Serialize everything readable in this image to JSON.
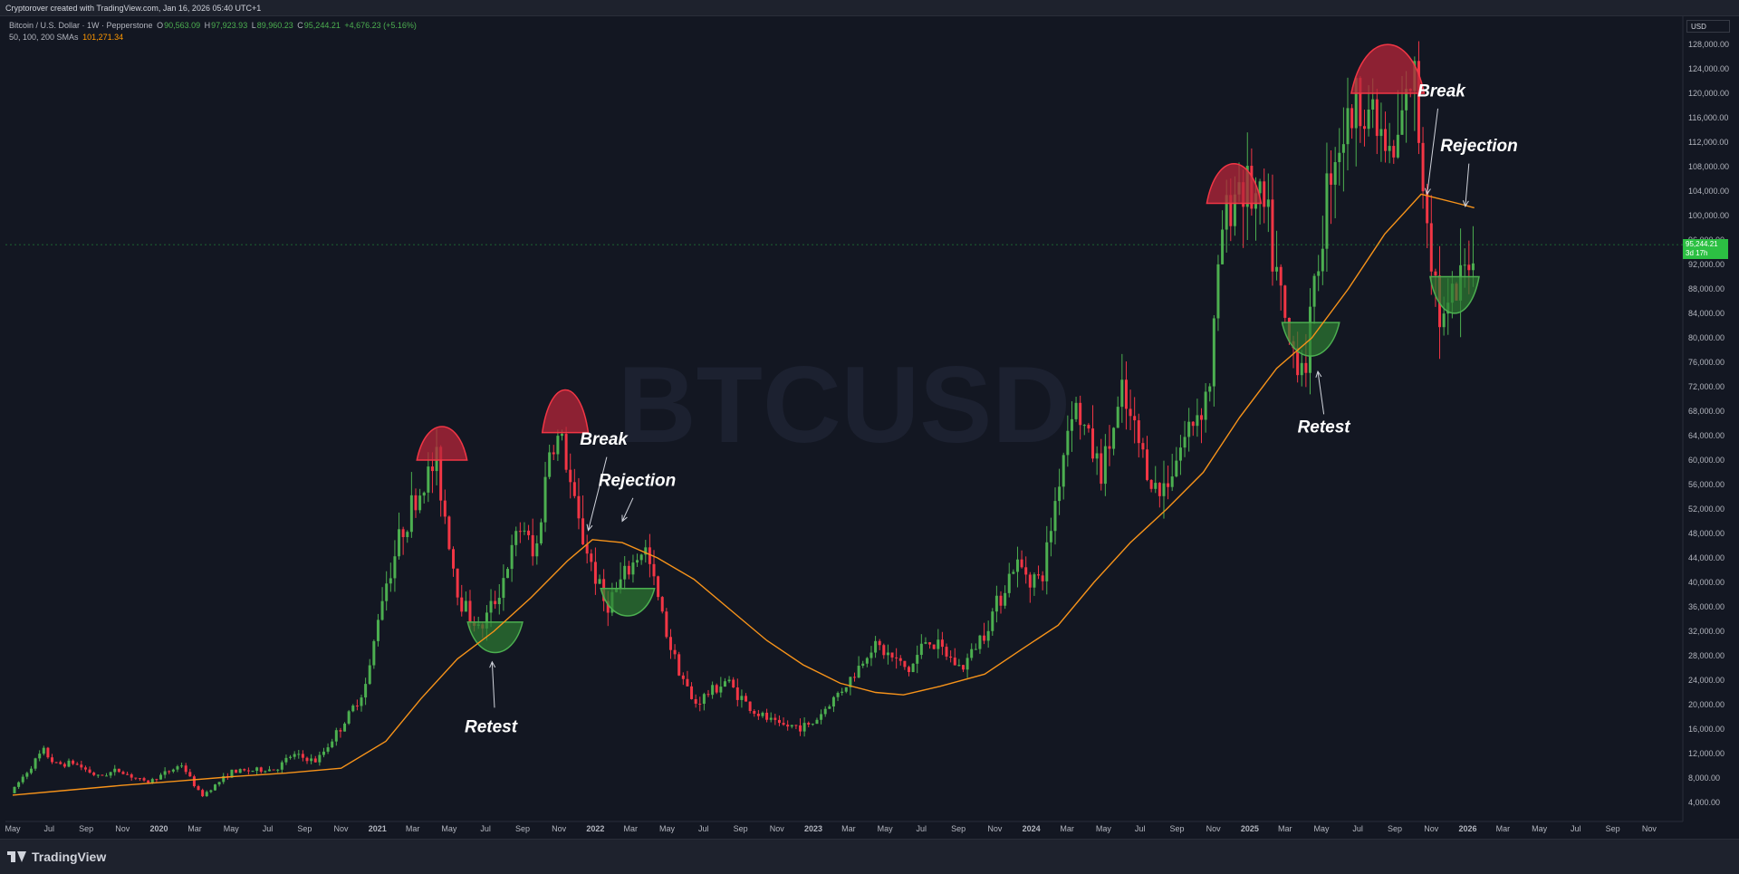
{
  "header": {
    "attribution": "Cryptorover created with TradingView.com, Jan 16, 2026 05:40 UTC+1"
  },
  "legend": {
    "symbol": "Bitcoin / U.S. Dollar · 1W · Pepperstone",
    "open_label": "O",
    "open": "90,563.09",
    "high_label": "H",
    "high": "97,923.93",
    "low_label": "L",
    "low": "89,960.23",
    "close_label": "C",
    "close": "95,244.21",
    "change": "+4,676.23 (+5.16%)",
    "sma_label": "50, 100, 200 SMAs",
    "sma_value": "101,271.34"
  },
  "price_axis": {
    "currency": "USD",
    "current_price": "95,244.21",
    "countdown": "3d 17h"
  },
  "footer": {
    "brand": "TradingView"
  },
  "colors": {
    "background": "#131722",
    "up": "#4caf50",
    "down": "#f23645",
    "sma": "#f7931a",
    "top_fill": "#b7263a",
    "bottom_fill": "#2e7d32"
  },
  "chart_data": {
    "type": "candlestick",
    "title": "",
    "xlabel": "",
    "ylabel": "",
    "ylim": [
      0,
      132000
    ],
    "x_range": [
      "2019-05-01",
      "2026-11-30"
    ],
    "y_ticks": [
      4000,
      8000,
      12000,
      16000,
      20000,
      24000,
      28000,
      32000,
      36000,
      40000,
      44000,
      48000,
      52000,
      56000,
      60000,
      64000,
      68000,
      72000,
      76000,
      80000,
      84000,
      88000,
      92000,
      96000,
      100000,
      104000,
      108000,
      112000,
      116000,
      120000,
      124000,
      128000
    ],
    "y_tick_labels": [
      "4,000.00",
      "8,000.00",
      "12,000.00",
      "16,000.00",
      "20,000.00",
      "24,000.00",
      "28,000.00",
      "32,000.00",
      "36,000.00",
      "40,000.00",
      "44,000.00",
      "48,000.00",
      "52,000.00",
      "56,000.00",
      "60,000.00",
      "64,000.00",
      "68,000.00",
      "72,000.00",
      "76,000.00",
      "80,000.00",
      "84,000.00",
      "88,000.00",
      "92,000.00",
      "96,000.00",
      "100,000.00",
      "104,000.00",
      "108,000.00",
      "112,000.00",
      "116,000.00",
      "120,000.00",
      "124,000.00",
      "128,000.00"
    ],
    "x_ticks": [
      {
        "date": "2019-05-01",
        "label": "May",
        "bold": false
      },
      {
        "date": "2019-07-01",
        "label": "Jul",
        "bold": false
      },
      {
        "date": "2019-09-01",
        "label": "Sep",
        "bold": false
      },
      {
        "date": "2019-11-01",
        "label": "Nov",
        "bold": false
      },
      {
        "date": "2020-01-01",
        "label": "2020",
        "bold": true
      },
      {
        "date": "2020-03-01",
        "label": "Mar",
        "bold": false
      },
      {
        "date": "2020-05-01",
        "label": "May",
        "bold": false
      },
      {
        "date": "2020-07-01",
        "label": "Jul",
        "bold": false
      },
      {
        "date": "2020-09-01",
        "label": "Sep",
        "bold": false
      },
      {
        "date": "2020-11-01",
        "label": "Nov",
        "bold": false
      },
      {
        "date": "2021-01-01",
        "label": "2021",
        "bold": true
      },
      {
        "date": "2021-03-01",
        "label": "Mar",
        "bold": false
      },
      {
        "date": "2021-05-01",
        "label": "May",
        "bold": false
      },
      {
        "date": "2021-07-01",
        "label": "Jul",
        "bold": false
      },
      {
        "date": "2021-09-01",
        "label": "Sep",
        "bold": false
      },
      {
        "date": "2021-11-01",
        "label": "Nov",
        "bold": false
      },
      {
        "date": "2022-01-01",
        "label": "2022",
        "bold": true
      },
      {
        "date": "2022-03-01",
        "label": "Mar",
        "bold": false
      },
      {
        "date": "2022-05-01",
        "label": "May",
        "bold": false
      },
      {
        "date": "2022-07-01",
        "label": "Jul",
        "bold": false
      },
      {
        "date": "2022-09-01",
        "label": "Sep",
        "bold": false
      },
      {
        "date": "2022-11-01",
        "label": "Nov",
        "bold": false
      },
      {
        "date": "2023-01-01",
        "label": "2023",
        "bold": true
      },
      {
        "date": "2023-03-01",
        "label": "Mar",
        "bold": false
      },
      {
        "date": "2023-05-01",
        "label": "May",
        "bold": false
      },
      {
        "date": "2023-07-01",
        "label": "Jul",
        "bold": false
      },
      {
        "date": "2023-09-01",
        "label": "Sep",
        "bold": false
      },
      {
        "date": "2023-11-01",
        "label": "Nov",
        "bold": false
      },
      {
        "date": "2024-01-01",
        "label": "2024",
        "bold": true
      },
      {
        "date": "2024-03-01",
        "label": "Mar",
        "bold": false
      },
      {
        "date": "2024-05-01",
        "label": "May",
        "bold": false
      },
      {
        "date": "2024-07-01",
        "label": "Jul",
        "bold": false
      },
      {
        "date": "2024-09-01",
        "label": "Sep",
        "bold": false
      },
      {
        "date": "2024-11-01",
        "label": "Nov",
        "bold": false
      },
      {
        "date": "2025-01-01",
        "label": "2025",
        "bold": true
      },
      {
        "date": "2025-03-01",
        "label": "Mar",
        "bold": false
      },
      {
        "date": "2025-05-01",
        "label": "May",
        "bold": false
      },
      {
        "date": "2025-07-01",
        "label": "Jul",
        "bold": false
      },
      {
        "date": "2025-09-01",
        "label": "Sep",
        "bold": false
      },
      {
        "date": "2025-11-01",
        "label": "Nov",
        "bold": false
      },
      {
        "date": "2026-01-01",
        "label": "2026",
        "bold": true
      },
      {
        "date": "2026-03-01",
        "label": "Mar",
        "bold": false
      },
      {
        "date": "2026-05-01",
        "label": "May",
        "bold": false
      },
      {
        "date": "2026-07-01",
        "label": "Jul",
        "bold": false
      },
      {
        "date": "2026-09-01",
        "label": "Sep",
        "bold": false
      },
      {
        "date": "2026-11-01",
        "label": "Nov",
        "bold": false
      }
    ],
    "price_path": [
      [
        "2019-05-01",
        5500
      ],
      [
        "2019-06-25",
        12500
      ],
      [
        "2019-07-15",
        10200
      ],
      [
        "2019-08-15",
        10500
      ],
      [
        "2019-09-25",
        8200
      ],
      [
        "2019-10-28",
        9300
      ],
      [
        "2019-12-15",
        7200
      ],
      [
        "2020-02-12",
        10200
      ],
      [
        "2020-03-16",
        5000
      ],
      [
        "2020-05-05",
        9000
      ],
      [
        "2020-07-20",
        9500
      ],
      [
        "2020-08-15",
        11800
      ],
      [
        "2020-09-25",
        10700
      ],
      [
        "2020-11-20",
        18500
      ],
      [
        "2020-12-20",
        24000
      ],
      [
        "2021-01-10",
        37000
      ],
      [
        "2021-02-20",
        50000
      ],
      [
        "2021-04-13",
        60000
      ],
      [
        "2021-05-20",
        38000
      ],
      [
        "2021-06-25",
        32000
      ],
      [
        "2021-07-25",
        38000
      ],
      [
        "2021-09-05",
        50000
      ],
      [
        "2021-09-25",
        43000
      ],
      [
        "2021-10-20",
        62000
      ],
      [
        "2021-11-08",
        64000
      ],
      [
        "2021-12-06",
        50000
      ],
      [
        "2022-01-22",
        36000
      ],
      [
        "2022-03-28",
        46000
      ],
      [
        "2022-05-09",
        30000
      ],
      [
        "2022-06-18",
        20000
      ],
      [
        "2022-08-12",
        24000
      ],
      [
        "2022-09-25",
        19000
      ],
      [
        "2022-11-09",
        16500
      ],
      [
        "2022-12-31",
        16500
      ],
      [
        "2023-03-15",
        25000
      ],
      [
        "2023-04-14",
        30000
      ],
      [
        "2023-06-15",
        25500
      ],
      [
        "2023-07-14",
        31000
      ],
      [
        "2023-09-11",
        25800
      ],
      [
        "2023-10-23",
        33000
      ],
      [
        "2023-12-08",
        43000
      ],
      [
        "2024-01-22",
        40000
      ],
      [
        "2024-03-14",
        70000
      ],
      [
        "2024-05-01",
        58000
      ],
      [
        "2024-06-05",
        70000
      ],
      [
        "2024-08-05",
        54000
      ],
      [
        "2024-09-27",
        65500
      ],
      [
        "2024-10-29",
        72000
      ],
      [
        "2024-11-20",
        98000
      ],
      [
        "2024-12-17",
        106000
      ],
      [
        "2025-02-01",
        100000
      ],
      [
        "2025-03-10",
        79000
      ],
      [
        "2025-04-08",
        76000
      ],
      [
        "2025-05-22",
        110000
      ],
      [
        "2025-07-14",
        120000
      ],
      [
        "2025-09-01",
        108000
      ],
      [
        "2025-10-06",
        124000
      ],
      [
        "2025-10-20",
        108000
      ],
      [
        "2025-11-21",
        82000
      ],
      [
        "2025-12-20",
        87000
      ],
      [
        "2026-01-12",
        95244
      ]
    ],
    "sma": [
      [
        "2019-05-01",
        5200
      ],
      [
        "2019-08-01",
        6000
      ],
      [
        "2019-11-01",
        6800
      ],
      [
        "2020-02-01",
        7500
      ],
      [
        "2020-05-01",
        8200
      ],
      [
        "2020-08-01",
        8800
      ],
      [
        "2020-11-01",
        9600
      ],
      [
        "2021-01-15",
        14000
      ],
      [
        "2021-03-15",
        21000
      ],
      [
        "2021-05-15",
        27500
      ],
      [
        "2021-07-15",
        32000
      ],
      [
        "2021-09-15",
        37500
      ],
      [
        "2021-11-15",
        43500
      ],
      [
        "2021-12-27",
        47000
      ],
      [
        "2022-02-15",
        46500
      ],
      [
        "2022-04-15",
        44000
      ],
      [
        "2022-06-15",
        40500
      ],
      [
        "2022-08-15",
        35500
      ],
      [
        "2022-10-15",
        30500
      ],
      [
        "2022-12-15",
        26500
      ],
      [
        "2023-02-15",
        23500
      ],
      [
        "2023-04-15",
        22000
      ],
      [
        "2023-06-01",
        21600
      ],
      [
        "2023-08-01",
        23000
      ],
      [
        "2023-10-15",
        25000
      ],
      [
        "2023-12-15",
        29000
      ],
      [
        "2024-02-15",
        33000
      ],
      [
        "2024-04-15",
        40000
      ],
      [
        "2024-06-15",
        46500
      ],
      [
        "2024-08-15",
        52000
      ],
      [
        "2024-10-15",
        58000
      ],
      [
        "2024-12-15",
        67000
      ],
      [
        "2025-02-15",
        75000
      ],
      [
        "2025-04-15",
        80000
      ],
      [
        "2025-06-15",
        88000
      ],
      [
        "2025-08-15",
        97000
      ],
      [
        "2025-10-15",
        103500
      ],
      [
        "2025-12-15",
        102000
      ],
      [
        "2026-01-12",
        101271
      ]
    ],
    "zones": [
      {
        "type": "top",
        "x0": "2021-03-08",
        "x1": "2021-05-31",
        "base": 60000,
        "peak": 65500
      },
      {
        "type": "top",
        "x0": "2021-10-04",
        "x1": "2021-12-20",
        "base": 64500,
        "peak": 71500
      },
      {
        "type": "top",
        "x0": "2024-10-21",
        "x1": "2025-01-20",
        "base": 102000,
        "peak": 108500
      },
      {
        "type": "top",
        "x0": "2025-06-20",
        "x1": "2025-10-20",
        "base": 120000,
        "peak": 128000
      },
      {
        "type": "bottom",
        "x0": "2021-06-01",
        "x1": "2021-09-01",
        "base": 33500,
        "bottom": 28500
      },
      {
        "type": "bottom",
        "x0": "2022-01-10",
        "x1": "2022-04-10",
        "base": 39000,
        "bottom": 34500
      },
      {
        "type": "bottom",
        "x0": "2025-02-24",
        "x1": "2025-05-31",
        "base": 82500,
        "bottom": 77000
      },
      {
        "type": "bottom",
        "x0": "2025-10-30",
        "x1": "2026-01-20",
        "base": 90000,
        "bottom": 84000
      }
    ],
    "annotations": [
      {
        "text": "Retest",
        "x": "2021-07-10",
        "y": 15500,
        "arrow_from": [
          "2021-07-16",
          19500
        ],
        "arrow_to": [
          "2021-07-12",
          27000
        ]
      },
      {
        "text": "Break",
        "x": "2022-01-15",
        "y": 62500,
        "arrow_from": [
          "2022-01-20",
          60500
        ],
        "arrow_to": [
          "2021-12-20",
          48500
        ]
      },
      {
        "text": "Rejection",
        "x": "2022-03-12",
        "y": 55800,
        "arrow_from": [
          "2022-03-05",
          53800
        ],
        "arrow_to": [
          "2022-02-15",
          50000
        ]
      },
      {
        "text": "Retest",
        "x": "2025-05-05",
        "y": 64500,
        "arrow_from": [
          "2025-05-05",
          67500
        ],
        "arrow_to": [
          "2025-04-25",
          74500
        ]
      },
      {
        "text": "Break",
        "x": "2025-11-18",
        "y": 119500,
        "arrow_from": [
          "2025-11-12",
          117500
        ],
        "arrow_to": [
          "2025-10-25",
          103500
        ]
      },
      {
        "text": "Rejection",
        "x": "2026-01-20",
        "y": 110500,
        "arrow_from": [
          "2026-01-03",
          108500
        ],
        "arrow_to": [
          "2025-12-28",
          101500
        ]
      }
    ],
    "watermark": "BTCUSD"
  }
}
